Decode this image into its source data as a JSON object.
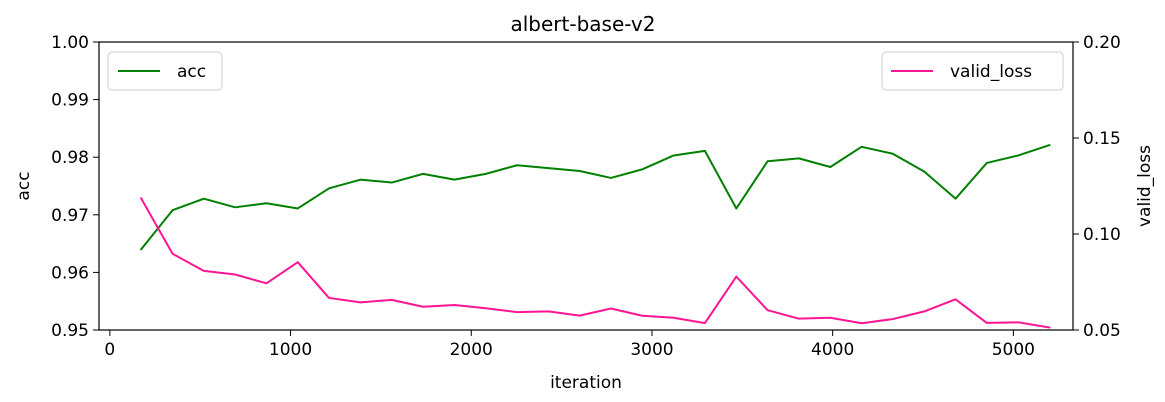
{
  "chart_data": {
    "type": "line",
    "title": "albert-base-v2",
    "xlabel": "iteration",
    "ylabel": "acc",
    "y2label": "valid_loss",
    "xlim": [
      -60,
      5330
    ],
    "ylim": [
      0.95,
      1.0
    ],
    "y2lim": [
      0.05,
      0.2
    ],
    "xticks": [
      0,
      1000,
      2000,
      3000,
      4000,
      5000
    ],
    "xtick_labels": [
      "0",
      "1000",
      "2000",
      "3000",
      "4000",
      "5000"
    ],
    "yticks": [
      0.95,
      0.96,
      0.97,
      0.98,
      0.99,
      1.0
    ],
    "ytick_labels": [
      "0.95",
      "0.96",
      "0.97",
      "0.98",
      "0.99",
      "1.00"
    ],
    "y2ticks": [
      0.05,
      0.1,
      0.15,
      0.2
    ],
    "y2tick_labels": [
      "0.05",
      "0.10",
      "0.15",
      "0.20"
    ],
    "grid": false,
    "x": [
      173,
      347,
      520,
      693,
      867,
      1040,
      1213,
      1387,
      1560,
      1733,
      1907,
      2080,
      2253,
      2427,
      2600,
      2773,
      2947,
      3120,
      3293,
      3467,
      3640,
      3813,
      3987,
      4160,
      4333,
      4507,
      4680,
      4853,
      5027,
      5200
    ],
    "series": [
      {
        "name": "acc",
        "axis": "left",
        "color": "#008000",
        "legend_position": "upper-left",
        "values": [
          0.964,
          0.9708,
          0.9728,
          0.9713,
          0.972,
          0.9711,
          0.9746,
          0.9761,
          0.9756,
          0.9771,
          0.9761,
          0.9771,
          0.9786,
          0.9781,
          0.9776,
          0.9764,
          0.9779,
          0.9803,
          0.9811,
          0.9711,
          0.9793,
          0.9798,
          0.9783,
          0.9818,
          0.9806,
          0.9775,
          0.9728,
          0.979,
          0.9803,
          0.9821
        ]
      },
      {
        "name": "valid_loss",
        "axis": "right",
        "color": "#ff1493",
        "legend_position": "upper-right",
        "values": [
          0.1186,
          0.0897,
          0.0808,
          0.0789,
          0.0743,
          0.0853,
          0.0667,
          0.0644,
          0.0657,
          0.0621,
          0.063,
          0.0613,
          0.0593,
          0.0597,
          0.0575,
          0.0612,
          0.0574,
          0.0564,
          0.0536,
          0.0778,
          0.0603,
          0.0559,
          0.0564,
          0.0535,
          0.0557,
          0.0597,
          0.066,
          0.0537,
          0.054,
          0.0513
        ]
      }
    ]
  }
}
